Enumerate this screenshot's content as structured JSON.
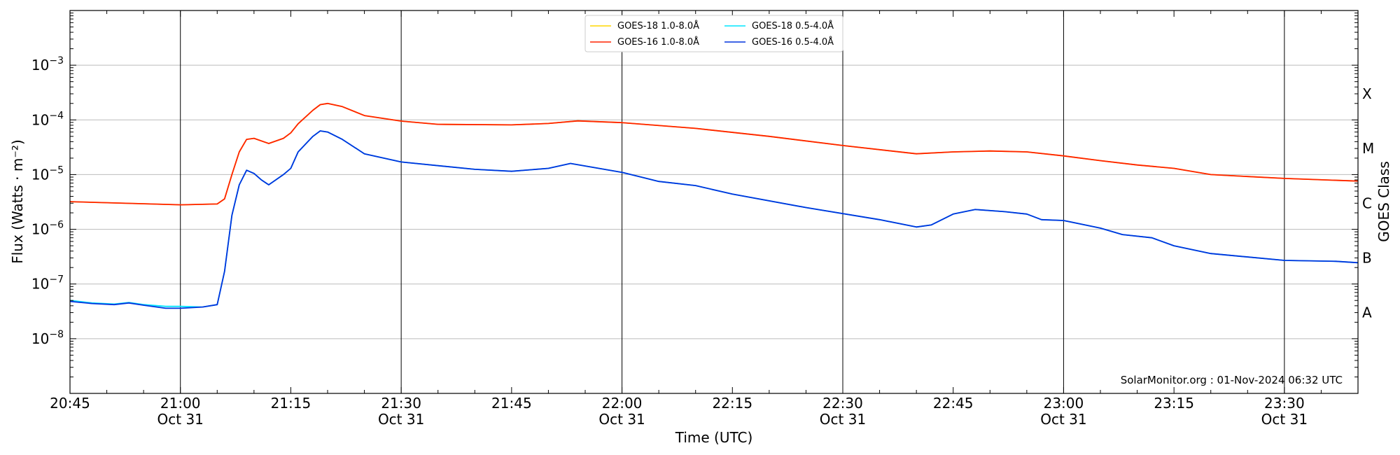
{
  "chart_data": {
    "type": "line",
    "title": "",
    "xlabel": "Time (UTC)",
    "ylabel": "Flux (Watts · m⁻²)",
    "ylabel_right": "GOES Class",
    "yscale": "log",
    "ylim": [
      1e-09,
      0.01
    ],
    "xlim": [
      "20:45",
      "23:40"
    ],
    "grid": "horizontal at decades; vertical lines at 30-minute marks",
    "legend_position": "top-center",
    "credit": "SolarMonitor.org : 01-Nov-2024 06:32 UTC",
    "x_ticks": [
      {
        "time": "20:45",
        "label": "20:45",
        "date": ""
      },
      {
        "time": "21:00",
        "label": "21:00",
        "date": "Oct 31"
      },
      {
        "time": "21:15",
        "label": "21:15",
        "date": ""
      },
      {
        "time": "21:30",
        "label": "21:30",
        "date": "Oct 31"
      },
      {
        "time": "21:45",
        "label": "21:45",
        "date": ""
      },
      {
        "time": "22:00",
        "label": "22:00",
        "date": "Oct 31"
      },
      {
        "time": "22:15",
        "label": "22:15",
        "date": ""
      },
      {
        "time": "22:30",
        "label": "22:30",
        "date": "Oct 31"
      },
      {
        "time": "22:45",
        "label": "22:45",
        "date": ""
      },
      {
        "time": "23:00",
        "label": "23:00",
        "date": "Oct 31"
      },
      {
        "time": "23:15",
        "label": "23:15",
        "date": ""
      },
      {
        "time": "23:30",
        "label": "23:30",
        "date": "Oct 31"
      }
    ],
    "vertical_lines": [
      "21:00",
      "21:30",
      "22:00",
      "22:30",
      "23:00",
      "23:30"
    ],
    "y_ticks": [
      {
        "exp": -3,
        "label": "10",
        "sup": "−3"
      },
      {
        "exp": -4,
        "label": "10",
        "sup": "−4"
      },
      {
        "exp": -5,
        "label": "10",
        "sup": "−5"
      },
      {
        "exp": -6,
        "label": "10",
        "sup": "−6"
      },
      {
        "exp": -7,
        "label": "10",
        "sup": "−7"
      },
      {
        "exp": -8,
        "label": "10",
        "sup": "−8"
      }
    ],
    "goes_classes": [
      {
        "label": "X",
        "value": 0.0003
      },
      {
        "label": "M",
        "value": 3e-05
      },
      {
        "label": "C",
        "value": 3e-06
      },
      {
        "label": "B",
        "value": 3e-07
      },
      {
        "label": "A",
        "value": 3e-08
      }
    ],
    "series": [
      {
        "name": "GOES-18 1.0-8.0Å",
        "color": "#ffd700",
        "x": [
          "20:45",
          "21:00",
          "21:05",
          "21:06",
          "21:07",
          "21:08",
          "21:09",
          "21:10",
          "21:12",
          "21:14",
          "21:15",
          "21:16",
          "21:18",
          "21:19",
          "21:20",
          "21:22",
          "21:25",
          "21:30",
          "21:35",
          "21:45",
          "21:50",
          "21:54",
          "22:00",
          "22:10",
          "22:20",
          "22:30",
          "22:40",
          "22:45",
          "22:50",
          "22:55",
          "23:00",
          "23:05",
          "23:10",
          "23:15",
          "23:20",
          "23:30",
          "23:40"
        ],
        "y": [
          3.2e-06,
          2.8e-06,
          2.9e-06,
          3.6e-06,
          1e-05,
          2.6e-05,
          4.4e-05,
          4.6e-05,
          3.7e-05,
          4.6e-05,
          5.8e-05,
          8.5e-05,
          0.00015,
          0.00019,
          0.0002,
          0.000175,
          0.00012,
          9.5e-05,
          8.3e-05,
          8.1e-05,
          8.6e-05,
          9.6e-05,
          8.9e-05,
          7e-05,
          5e-05,
          3.4e-05,
          2.4e-05,
          2.6e-05,
          2.7e-05,
          2.6e-05,
          2.2e-05,
          1.8e-05,
          1.5e-05,
          1.3e-05,
          1e-05,
          8.5e-06,
          7.6e-06
        ]
      },
      {
        "name": "GOES-16 1.0-8.0Å",
        "color": "#ff2200",
        "x": [
          "20:45",
          "21:00",
          "21:05",
          "21:06",
          "21:07",
          "21:08",
          "21:09",
          "21:10",
          "21:12",
          "21:14",
          "21:15",
          "21:16",
          "21:18",
          "21:19",
          "21:20",
          "21:22",
          "21:25",
          "21:30",
          "21:35",
          "21:45",
          "21:50",
          "21:54",
          "22:00",
          "22:10",
          "22:20",
          "22:30",
          "22:40",
          "22:45",
          "22:50",
          "22:55",
          "23:00",
          "23:05",
          "23:10",
          "23:15",
          "23:20",
          "23:30",
          "23:40"
        ],
        "y": [
          3.2e-06,
          2.8e-06,
          2.9e-06,
          3.6e-06,
          1e-05,
          2.6e-05,
          4.4e-05,
          4.6e-05,
          3.7e-05,
          4.6e-05,
          5.8e-05,
          8.5e-05,
          0.00015,
          0.00019,
          0.0002,
          0.000175,
          0.00012,
          9.5e-05,
          8.3e-05,
          8.1e-05,
          8.6e-05,
          9.6e-05,
          8.9e-05,
          7e-05,
          5e-05,
          3.4e-05,
          2.4e-05,
          2.6e-05,
          2.7e-05,
          2.6e-05,
          2.2e-05,
          1.8e-05,
          1.5e-05,
          1.3e-05,
          1e-05,
          8.5e-06,
          7.6e-06
        ]
      },
      {
        "name": "GOES-18 0.5-4.0Å",
        "color": "#00e5ff",
        "x": [
          "20:45",
          "20:48",
          "20:51",
          "20:53",
          "20:55",
          "20:58",
          "21:00",
          "21:03",
          "21:05",
          "21:06",
          "21:07",
          "21:08",
          "21:09",
          "21:10",
          "21:11",
          "21:12",
          "21:14",
          "21:15",
          "21:16",
          "21:18",
          "21:19",
          "21:20",
          "21:22",
          "21:25",
          "21:30",
          "21:40",
          "21:45",
          "21:50",
          "21:53",
          "22:00",
          "22:05",
          "22:10",
          "22:15",
          "22:25",
          "22:35",
          "22:40",
          "22:42",
          "22:45",
          "22:48",
          "22:52",
          "22:55",
          "22:57",
          "23:00",
          "23:05",
          "23:08",
          "23:12",
          "23:15",
          "23:20",
          "23:30",
          "23:37",
          "23:40"
        ],
        "y": [
          5e-08,
          4.5e-08,
          4.3e-08,
          4.6e-08,
          4.2e-08,
          3.9e-08,
          3.9e-08,
          3.8e-08,
          4.2e-08,
          1.7e-07,
          1.8e-06,
          6.5e-06,
          1.2e-05,
          1.05e-05,
          8e-06,
          6.5e-06,
          1e-05,
          1.3e-05,
          2.6e-05,
          5e-05,
          6.3e-05,
          6e-05,
          4.4e-05,
          2.4e-05,
          1.7e-05,
          1.25e-05,
          1.15e-05,
          1.3e-05,
          1.6e-05,
          1.1e-05,
          7.5e-06,
          6.3e-06,
          4.4e-06,
          2.5e-06,
          1.5e-06,
          1.1e-06,
          1.2e-06,
          1.9e-06,
          2.3e-06,
          2.1e-06,
          1.9e-06,
          1.5e-06,
          1.45e-06,
          1.05e-06,
          8e-07,
          7e-07,
          5e-07,
          3.6e-07,
          2.7e-07,
          2.6e-07,
          2.45e-07
        ]
      },
      {
        "name": "GOES-16 0.5-4.0Å",
        "color": "#0033dd",
        "x": [
          "20:45",
          "20:48",
          "20:51",
          "20:53",
          "20:55",
          "20:58",
          "21:00",
          "21:03",
          "21:05",
          "21:06",
          "21:07",
          "21:08",
          "21:09",
          "21:10",
          "21:11",
          "21:12",
          "21:14",
          "21:15",
          "21:16",
          "21:18",
          "21:19",
          "21:20",
          "21:22",
          "21:25",
          "21:30",
          "21:40",
          "21:45",
          "21:50",
          "21:53",
          "22:00",
          "22:05",
          "22:10",
          "22:15",
          "22:25",
          "22:35",
          "22:40",
          "22:42",
          "22:45",
          "22:48",
          "22:52",
          "22:55",
          "22:57",
          "23:00",
          "23:05",
          "23:08",
          "23:12",
          "23:15",
          "23:20",
          "23:30",
          "23:37",
          "23:40"
        ],
        "y": [
          4.8e-08,
          4.4e-08,
          4.2e-08,
          4.5e-08,
          4.1e-08,
          3.6e-08,
          3.6e-08,
          3.8e-08,
          4.2e-08,
          1.7e-07,
          1.8e-06,
          6.5e-06,
          1.2e-05,
          1.05e-05,
          8e-06,
          6.5e-06,
          1e-05,
          1.3e-05,
          2.6e-05,
          5e-05,
          6.3e-05,
          6e-05,
          4.4e-05,
          2.4e-05,
          1.7e-05,
          1.25e-05,
          1.15e-05,
          1.3e-05,
          1.6e-05,
          1.1e-05,
          7.5e-06,
          6.3e-06,
          4.4e-06,
          2.5e-06,
          1.5e-06,
          1.1e-06,
          1.2e-06,
          1.9e-06,
          2.3e-06,
          2.1e-06,
          1.9e-06,
          1.5e-06,
          1.45e-06,
          1.05e-06,
          8e-07,
          7e-07,
          5e-07,
          3.6e-07,
          2.7e-07,
          2.6e-07,
          2.45e-07
        ]
      }
    ]
  }
}
